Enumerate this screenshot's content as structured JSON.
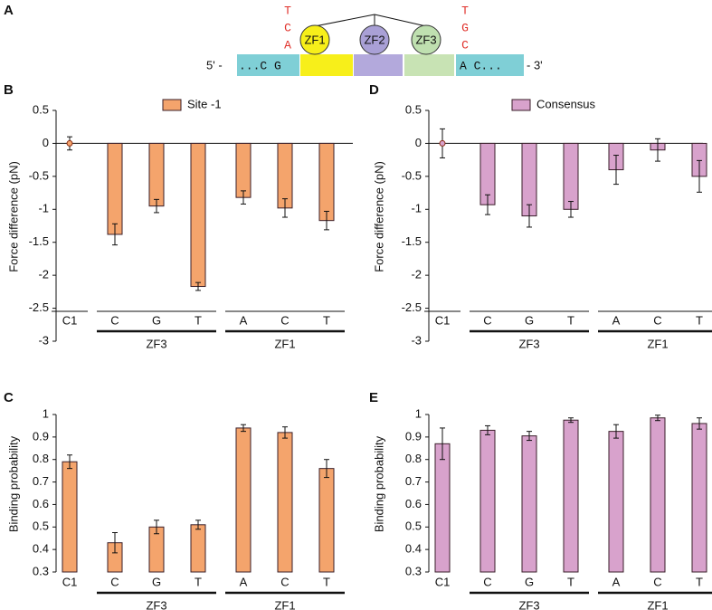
{
  "diagram": {
    "panel_label": "A",
    "left_bases": [
      "T",
      "C",
      "A"
    ],
    "right_bases": [
      "T",
      "G",
      "C"
    ],
    "fingers": [
      "ZF1",
      "ZF2",
      "ZF3"
    ],
    "five_prime": "5' -",
    "left_seq": "...C G",
    "right_seq": "A C...",
    "three_prime": "- 3'"
  },
  "chart_data": [
    {
      "type": "bar",
      "panel_label": "B",
      "ylabel": "Force difference (pN)",
      "categories": [
        "C1",
        "C",
        "G",
        "T",
        "A",
        "C",
        "T"
      ],
      "group_labels": [
        null,
        "ZF3",
        "ZF3",
        "ZF3",
        "ZF1",
        "ZF1",
        "ZF1"
      ],
      "marker_categories": [
        "C1"
      ],
      "series": [
        {
          "name": "Site -1",
          "color": "#f4a46c",
          "values": [
            0,
            -1.38,
            -0.95,
            -2.17,
            -0.82,
            -0.98,
            -1.17
          ],
          "errors": [
            0.1,
            0.16,
            0.1,
            0.06,
            0.1,
            0.14,
            0.14
          ]
        }
      ],
      "ylim": [
        -3,
        0.5
      ],
      "yticks": [
        0.5,
        0,
        -0.5,
        -1,
        -1.5,
        -2,
        -2.5,
        -3
      ],
      "legend": true
    },
    {
      "type": "bar",
      "panel_label": "D",
      "ylabel": "Force difference (pN)",
      "categories": [
        "C1",
        "C",
        "G",
        "T",
        "A",
        "C",
        "T"
      ],
      "group_labels": [
        null,
        "ZF3",
        "ZF3",
        "ZF3",
        "ZF1",
        "ZF1",
        "ZF1"
      ],
      "marker_categories": [
        "C1"
      ],
      "series": [
        {
          "name": "Consensus",
          "color": "#d8a2cc",
          "values": [
            0,
            -0.93,
            -1.1,
            -1.0,
            -0.4,
            -0.1,
            -0.5
          ],
          "errors": [
            0.22,
            0.15,
            0.17,
            0.12,
            0.22,
            0.17,
            0.24
          ]
        }
      ],
      "ylim": [
        -3,
        0.5
      ],
      "yticks": [
        0.5,
        0,
        -0.5,
        -1,
        -1.5,
        -2,
        -2.5,
        -3
      ],
      "legend": true
    },
    {
      "type": "bar",
      "panel_label": "C",
      "ylabel": "Binding probability",
      "categories": [
        "C1",
        "C",
        "G",
        "T",
        "A",
        "C",
        "T"
      ],
      "group_labels": [
        null,
        "ZF3",
        "ZF3",
        "ZF3",
        "ZF1",
        "ZF1",
        "ZF1"
      ],
      "series": [
        {
          "color": "#f4a46c",
          "values": [
            0.79,
            0.43,
            0.5,
            0.51,
            0.94,
            0.92,
            0.76
          ],
          "errors": [
            0.03,
            0.045,
            0.03,
            0.02,
            0.015,
            0.025,
            0.04
          ]
        }
      ],
      "ylim": [
        0.3,
        1
      ],
      "yticks": [
        0.3,
        0.4,
        0.5,
        0.6,
        0.7,
        0.8,
        0.9,
        1
      ],
      "legend": false
    },
    {
      "type": "bar",
      "panel_label": "E",
      "ylabel": "Binding probability",
      "categories": [
        "C1",
        "C",
        "G",
        "T",
        "A",
        "C",
        "T"
      ],
      "group_labels": [
        null,
        "ZF3",
        "ZF3",
        "ZF3",
        "ZF1",
        "ZF1",
        "ZF1"
      ],
      "series": [
        {
          "color": "#d8a2cc",
          "values": [
            0.87,
            0.93,
            0.905,
            0.975,
            0.925,
            0.985,
            0.96
          ],
          "errors": [
            0.07,
            0.02,
            0.02,
            0.01,
            0.03,
            0.012,
            0.025
          ]
        }
      ],
      "ylim": [
        0.3,
        1
      ],
      "yticks": [
        0.3,
        0.4,
        0.5,
        0.6,
        0.7,
        0.8,
        0.9,
        1
      ],
      "legend": false
    }
  ]
}
